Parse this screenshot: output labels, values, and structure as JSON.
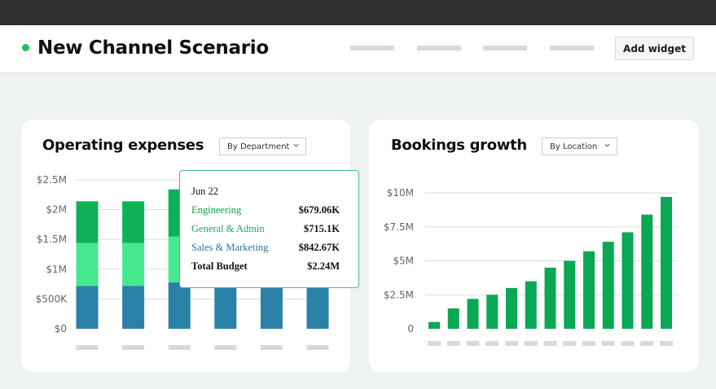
{
  "header": {
    "title": "New Channel Scenario",
    "add_widget_label": "Add widget",
    "status_color": "#1fc15b"
  },
  "opex": {
    "title": "Operating expenses",
    "dropdown": "By Department",
    "chart_data": {
      "type": "bar",
      "stacked": true,
      "ylim": [
        0,
        2500000
      ],
      "y_tick_labels": [
        "$0",
        "$500K",
        "$1M",
        "$1.5M",
        "$2M",
        "$2.5M"
      ],
      "x_tick_labels": [
        "",
        "",
        "",
        "",
        "",
        ""
      ],
      "series": [
        {
          "name": "Sales & Marketing",
          "color": "#2b80a8",
          "values": [
            720000,
            720000,
            780000,
            720000,
            720000,
            720000
          ]
        },
        {
          "name": "General & Admin",
          "color": "#45e88f",
          "values": [
            720000,
            720000,
            770000,
            720000,
            720000,
            720000
          ]
        },
        {
          "name": "Engineering",
          "color": "#0fb158",
          "values": [
            700000,
            700000,
            790000,
            700000,
            700000,
            700000
          ]
        }
      ],
      "grid": true
    },
    "tooltip": {
      "date": "Jun 22",
      "rows": [
        {
          "label": "Engineering",
          "value": "$679.06K",
          "color": "#0f9a50"
        },
        {
          "label": "General & Admin",
          "value": "$715.1K",
          "color": "#1fa75f"
        },
        {
          "label": "Sales & Marketing",
          "value": "$842.67K",
          "color": "#2a76a0"
        }
      ],
      "total_label": "Total Budget",
      "total_value": "$2.24M"
    }
  },
  "bookings": {
    "title": "Bookings growth",
    "dropdown": "By Location",
    "chart_data": {
      "type": "bar",
      "ylim": [
        0,
        10000000
      ],
      "y_tick_labels": [
        "0",
        "$2.5M",
        "$5M",
        "$7.5M",
        "$10M"
      ],
      "x_tick_labels": [
        "",
        "",
        "",
        "",
        "",
        "",
        "",
        "",
        "",
        "",
        "",
        "",
        ""
      ],
      "series": [
        {
          "color": "#0aa855",
          "values": [
            500000,
            1500000,
            2200000,
            2500000,
            3000000,
            3500000,
            4500000,
            5000000,
            5700000,
            6400000,
            7100000,
            8400000,
            9700000
          ]
        }
      ],
      "grid": true
    }
  },
  "colors": {
    "accent_green": "#0aa855",
    "placeholder_gray": "#d5dadd"
  }
}
